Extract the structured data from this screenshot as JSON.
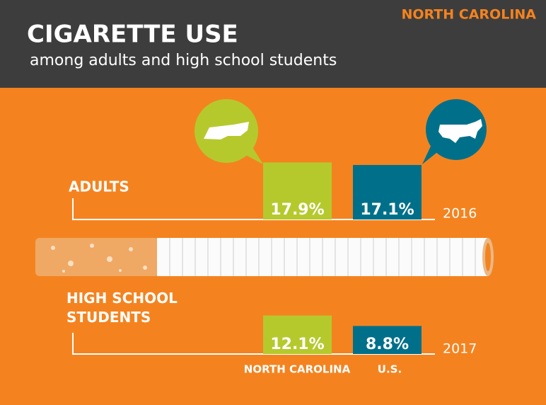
{
  "chart_data": {
    "type": "bar",
    "title": "CIGARETTE USE",
    "subtitle": "among adults and high school students",
    "corner_label": "NORTH CAROLINA",
    "categories": [
      "ADULTS",
      "HIGH SCHOOL STUDENTS"
    ],
    "years": [
      "2016",
      "2017"
    ],
    "series": [
      {
        "name": "NORTH CAROLINA",
        "color": "#b5c92d",
        "values": [
          17.9,
          12.1
        ],
        "value_labels": [
          "17.9%",
          "12.1%"
        ]
      },
      {
        "name": "U.S.",
        "color": "#00708a",
        "values": [
          17.1,
          8.8
        ],
        "value_labels": [
          "17.1%",
          "8.8%"
        ]
      }
    ]
  }
}
